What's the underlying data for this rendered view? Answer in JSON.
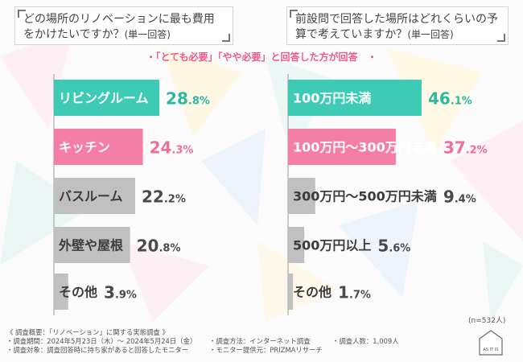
{
  "questions": {
    "left": {
      "text": "どの場所のリノベーションに最も費用をかけたいですか？",
      "sub": "(単一回答)"
    },
    "right": {
      "text": "前設問で回答した場所はどれくらいの予算で考えていますか？",
      "sub": "(単一回答)"
    }
  },
  "note": "・「とても必要」「やや必要」と回答した方が回答　・",
  "sample_size": "(n=532人)",
  "colors": {
    "teal": "#3ecbb6",
    "pink": "#f47ea6",
    "gray": "#c0c0c0",
    "value_teal": "#2cb7a3",
    "value_pink": "#ee6f9a",
    "value_gray": "#4a4a4a"
  },
  "chart_data": [
    {
      "type": "bar",
      "orientation": "horizontal",
      "categories": [
        "リビングルーム",
        "キッチン",
        "バスルーム",
        "外壁や屋根",
        "その他"
      ],
      "values": [
        28.8,
        24.3,
        22.2,
        20.8,
        3.9
      ],
      "value_labels": [
        "28.8%",
        "24.3%",
        "22.2%",
        "20.8%",
        "3.9%"
      ],
      "bar_colors": [
        "teal",
        "pink",
        "gray",
        "gray",
        "gray"
      ],
      "label_inside": [
        true,
        true,
        true,
        true,
        false
      ]
    },
    {
      "type": "bar",
      "orientation": "horizontal",
      "categories": [
        "100万円未満",
        "100万円〜300万円未満",
        "300万円〜500万円未満",
        "500万円以上",
        "その他"
      ],
      "values": [
        46.1,
        37.2,
        9.4,
        5.6,
        1.7
      ],
      "value_labels": [
        "46.1%",
        "37.2%",
        "9.4%",
        "5.6%",
        "1.7%"
      ],
      "bar_colors": [
        "teal",
        "pink",
        "gray",
        "gray",
        "gray"
      ],
      "label_inside": [
        true,
        true,
        false,
        false,
        false
      ]
    }
  ],
  "footer": {
    "overview": "《 調査概要：「リノベーション」に関する実態調査 》",
    "period": "・調査期間：2024年5月23日（木）〜 2024年5月24日（金）",
    "method": "・調査方法：インターネット調査",
    "count": "・調査人数：1,009人",
    "target": "・調査対象：調査回答時に持ち家があると回答したモニター",
    "provider": "・モニター提供元：PRIZMAリサーチ"
  },
  "logo": {
    "text": "AS IT IS"
  }
}
